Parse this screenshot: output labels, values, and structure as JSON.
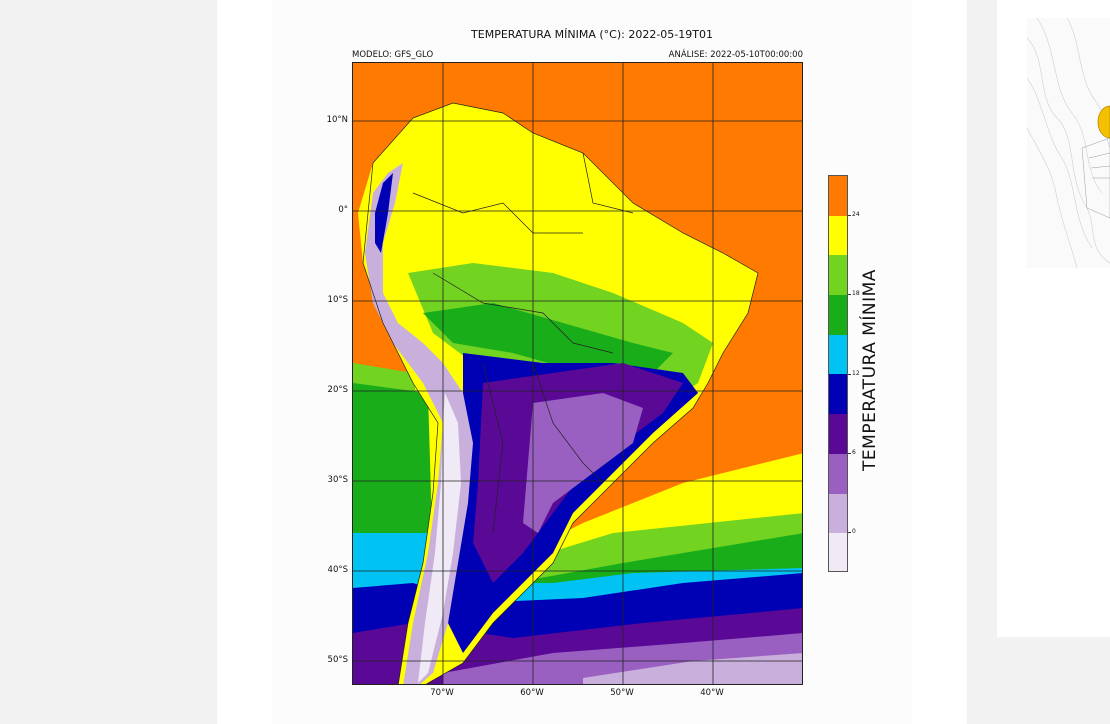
{
  "figure": {
    "title": "TEMPERATURA MÍNIMA (°C): 2022-05-19T01",
    "model": "MODELO: GFS_GLO",
    "analysis": "ANÁLISE: 2022-05-10T00:00:00"
  },
  "map": {
    "lat_labels": [
      "10°N",
      "0°",
      "10°S",
      "20°S",
      "30°S",
      "40°S",
      "50°S"
    ],
    "lon_labels": [
      "70°W",
      "60°W",
      "50°W",
      "40°W"
    ]
  },
  "colorbar": {
    "label": "TEMPERATURA MÍNIMA",
    "tick_labels": [
      "24",
      "18",
      "12",
      "6",
      "0"
    ],
    "colors": [
      "#ff7a00",
      "#ffff00",
      "#72d321",
      "#1aad1a",
      "#00c3f4",
      "#0000b4",
      "#5a0896",
      "#9960c2",
      "#c9b0dc",
      "#f0eaf6"
    ]
  }
}
